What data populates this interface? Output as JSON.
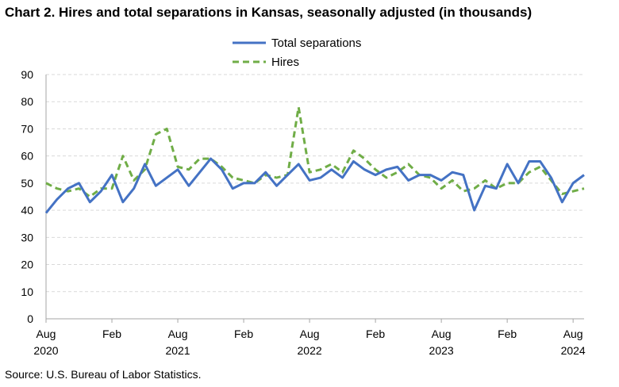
{
  "title": "Chart 2. Hires and total separations in Kansas, seasonally adjusted (in thousands)",
  "source": "Source: U.S. Bureau of Labor Statistics.",
  "colors": {
    "total_separations": "#4472c4",
    "hires": "#70ad47",
    "grid": "#d9d9d9",
    "axis": "#a6a6a6"
  },
  "chart_data": {
    "type": "line",
    "title": "Chart 2. Hires and total separations in Kansas, seasonally adjusted (in thousands)",
    "xlabel": "",
    "ylabel": "",
    "ylim": [
      0,
      90
    ],
    "yticks": [
      0,
      10,
      20,
      30,
      40,
      50,
      60,
      70,
      80,
      90
    ],
    "grid": "horizontal-dashed",
    "legend_position": "top-center",
    "x_start": "Aug 2020",
    "x_end": "Aug 2024",
    "x_tick_labels": [
      {
        "month": "Aug",
        "year": "2020"
      },
      {
        "month": "Feb",
        "year": ""
      },
      {
        "month": "Aug",
        "year": "2021"
      },
      {
        "month": "Feb",
        "year": ""
      },
      {
        "month": "Aug",
        "year": "2022"
      },
      {
        "month": "Feb",
        "year": ""
      },
      {
        "month": "Aug",
        "year": "2023"
      },
      {
        "month": "Feb",
        "year": ""
      },
      {
        "month": "Aug",
        "year": "2024"
      }
    ],
    "series": [
      {
        "name": "Total separations",
        "style": "solid",
        "color": "#4472c4",
        "values": [
          39,
          44,
          48,
          50,
          43,
          47,
          53,
          43,
          48,
          57,
          49,
          52,
          55,
          49,
          54,
          59,
          55,
          48,
          50,
          50,
          54,
          49,
          53,
          57,
          51,
          52,
          55,
          52,
          58,
          55,
          53,
          55,
          56,
          51,
          53,
          53,
          51,
          54,
          53,
          40,
          49,
          48,
          57,
          50,
          58,
          58,
          52,
          43,
          50,
          53
        ]
      },
      {
        "name": "Hires",
        "style": "dashed",
        "color": "#70ad47",
        "values": [
          50,
          48,
          47,
          48,
          45,
          48,
          48,
          60,
          51,
          55,
          68,
          70,
          56,
          55,
          59,
          59,
          56,
          52,
          51,
          50,
          53,
          52,
          53,
          78,
          54,
          55,
          57,
          54,
          62,
          59,
          55,
          52,
          54,
          57,
          53,
          52,
          48,
          51,
          47,
          48,
          51,
          48,
          50,
          50,
          54,
          56,
          51,
          46,
          47,
          48
        ]
      }
    ]
  }
}
